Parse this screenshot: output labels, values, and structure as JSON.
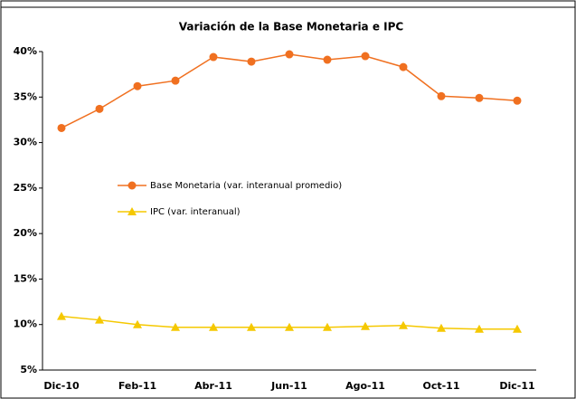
{
  "chart_data": {
    "type": "line",
    "title": "Variación de la Base Monetaria e IPC",
    "categories": [
      "Dic-10",
      null,
      "Feb-11",
      null,
      "Abr-11",
      null,
      "Jun-11",
      null,
      "Ago-11",
      null,
      "Oct-11",
      null,
      "Dic-11"
    ],
    "series": [
      {
        "name": "Base Monetaria (var. interanual promedio)",
        "color": "#f07020",
        "marker": "circle",
        "values": [
          31.6,
          33.7,
          36.2,
          36.8,
          39.4,
          38.9,
          39.7,
          39.1,
          39.5,
          38.3,
          35.1,
          34.9,
          34.6
        ]
      },
      {
        "name": "IPC (var. interanual)",
        "color": "#f5c800",
        "marker": "triangle",
        "values": [
          10.9,
          10.5,
          10.0,
          9.7,
          9.7,
          9.7,
          9.7,
          9.7,
          9.8,
          9.9,
          9.6,
          9.5,
          9.5
        ]
      }
    ],
    "ylim": [
      5,
      40
    ],
    "yticks": [
      {
        "value": 5,
        "label": "5%"
      },
      {
        "value": 10,
        "label": "10%"
      },
      {
        "value": 15,
        "label": "15%"
      },
      {
        "value": 20,
        "label": "20%"
      },
      {
        "value": 25,
        "label": "25%"
      },
      {
        "value": 30,
        "label": "30%"
      },
      {
        "value": 35,
        "label": "35%"
      },
      {
        "value": 40,
        "label": "40%"
      }
    ],
    "grid": false
  }
}
